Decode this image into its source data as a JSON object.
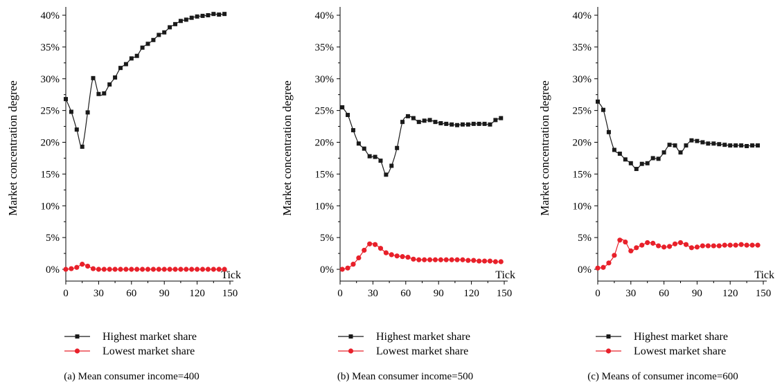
{
  "chart_data": [
    {
      "type": "line",
      "caption": "(a)  Mean consumer income=400",
      "xlabel": "Tick",
      "ylabel": "Market concentration degree",
      "xlim": [
        0,
        150
      ],
      "ylim": [
        0,
        40
      ],
      "xticks": [
        0,
        30,
        60,
        90,
        120,
        150
      ],
      "yticks": [
        0,
        5,
        10,
        15,
        20,
        25,
        30,
        35,
        40
      ],
      "ytick_labels": [
        "0%",
        "5%",
        "10%",
        "15%",
        "20%",
        "25%",
        "30%",
        "35%",
        "40%"
      ],
      "grid": false,
      "legend_position": "bottom-center",
      "series": [
        {
          "name": "Highest market share",
          "color": "#1a1a1a",
          "marker": "square",
          "x": [
            0,
            5,
            10,
            15,
            20,
            25,
            30,
            35,
            40,
            45,
            50,
            55,
            60,
            65,
            70,
            75,
            80,
            85,
            90,
            95,
            100,
            105,
            110,
            115,
            120,
            125,
            130,
            135,
            140,
            145
          ],
          "y": [
            26.8,
            24.8,
            22.0,
            19.3,
            24.7,
            30.1,
            27.6,
            27.7,
            29.1,
            30.2,
            31.7,
            32.3,
            33.2,
            33.6,
            34.9,
            35.5,
            36.1,
            36.9,
            37.3,
            38.1,
            38.6,
            39.1,
            39.3,
            39.6,
            39.8,
            39.9,
            40.0,
            40.2,
            40.1,
            40.2
          ]
        },
        {
          "name": "Lowest market share",
          "color": "#e8202a",
          "marker": "circle",
          "x": [
            0,
            5,
            10,
            15,
            20,
            25,
            30,
            35,
            40,
            45,
            50,
            55,
            60,
            65,
            70,
            75,
            80,
            85,
            90,
            95,
            100,
            105,
            110,
            115,
            120,
            125,
            130,
            135,
            140,
            145
          ],
          "y": [
            0.0,
            0.1,
            0.3,
            0.8,
            0.5,
            0.1,
            0.0,
            0.0,
            0.0,
            0.0,
            0.0,
            0.0,
            0.0,
            0.0,
            0.0,
            0.0,
            0.0,
            0.0,
            0.0,
            0.0,
            0.0,
            0.0,
            0.0,
            0.0,
            0.0,
            0.0,
            0.0,
            0.0,
            0.0,
            0.0
          ]
        }
      ]
    },
    {
      "type": "line",
      "caption": "(b)  Mean consumer income=500",
      "xlabel": "Tick",
      "ylabel": "Market concentration degree",
      "xlim": [
        0,
        150
      ],
      "ylim": [
        0,
        40
      ],
      "xticks": [
        0,
        30,
        60,
        90,
        120,
        150
      ],
      "yticks": [
        0,
        5,
        10,
        15,
        20,
        25,
        30,
        35,
        40
      ],
      "ytick_labels": [
        "0%",
        "5%",
        "10%",
        "15%",
        "20%",
        "25%",
        "30%",
        "35%",
        "40%"
      ],
      "grid": false,
      "legend_position": "bottom-center",
      "series": [
        {
          "name": "Highest market share",
          "color": "#1a1a1a",
          "marker": "square",
          "x": [
            2,
            7,
            12,
            17,
            22,
            27,
            32,
            37,
            42,
            47,
            52,
            57,
            62,
            67,
            72,
            77,
            82,
            87,
            92,
            97,
            102,
            107,
            112,
            117,
            122,
            127,
            132,
            137,
            142,
            147
          ],
          "y": [
            25.5,
            24.3,
            21.9,
            19.8,
            19.0,
            17.8,
            17.7,
            17.1,
            14.9,
            16.3,
            19.1,
            23.2,
            24.1,
            23.8,
            23.2,
            23.4,
            23.5,
            23.2,
            23.0,
            22.9,
            22.8,
            22.7,
            22.8,
            22.8,
            22.9,
            22.9,
            22.9,
            22.8,
            23.5,
            23.8
          ]
        },
        {
          "name": "Lowest market share",
          "color": "#e8202a",
          "marker": "circle",
          "x": [
            2,
            7,
            12,
            17,
            22,
            27,
            32,
            37,
            42,
            47,
            52,
            57,
            62,
            67,
            72,
            77,
            82,
            87,
            92,
            97,
            102,
            107,
            112,
            117,
            122,
            127,
            132,
            137,
            142,
            147
          ],
          "y": [
            0.0,
            0.2,
            0.8,
            1.8,
            3.0,
            4.0,
            3.9,
            3.3,
            2.6,
            2.3,
            2.1,
            2.0,
            1.9,
            1.6,
            1.5,
            1.5,
            1.5,
            1.5,
            1.5,
            1.5,
            1.5,
            1.5,
            1.5,
            1.4,
            1.4,
            1.3,
            1.3,
            1.3,
            1.2,
            1.2
          ]
        }
      ]
    },
    {
      "type": "line",
      "caption": "(c)  Means of consumer income=600",
      "xlabel": "Tick",
      "ylabel": "Market concentration degree",
      "xlim": [
        0,
        150
      ],
      "ylim": [
        0,
        40
      ],
      "xticks": [
        0,
        30,
        60,
        90,
        120,
        150
      ],
      "yticks": [
        0,
        5,
        10,
        15,
        20,
        25,
        30,
        35,
        40
      ],
      "ytick_labels": [
        "0%",
        "5%",
        "10%",
        "15%",
        "20%",
        "25%",
        "30%",
        "35%",
        "40%"
      ],
      "grid": false,
      "legend_position": "bottom-center",
      "series": [
        {
          "name": "Highest market share",
          "color": "#1a1a1a",
          "marker": "square",
          "x": [
            0,
            5,
            10,
            15,
            20,
            25,
            30,
            35,
            40,
            45,
            50,
            55,
            60,
            65,
            70,
            75,
            80,
            85,
            90,
            95,
            100,
            105,
            110,
            115,
            120,
            125,
            130,
            135,
            140,
            145
          ],
          "y": [
            26.4,
            25.1,
            21.6,
            18.8,
            18.2,
            17.3,
            16.7,
            15.8,
            16.6,
            16.7,
            17.5,
            17.4,
            18.4,
            19.6,
            19.5,
            18.4,
            19.5,
            20.3,
            20.2,
            20.0,
            19.8,
            19.8,
            19.7,
            19.6,
            19.5,
            19.5,
            19.5,
            19.4,
            19.5,
            19.5
          ]
        },
        {
          "name": "Lowest market share",
          "color": "#e8202a",
          "marker": "circle",
          "x": [
            0,
            5,
            10,
            15,
            20,
            25,
            30,
            35,
            40,
            45,
            50,
            55,
            60,
            65,
            70,
            75,
            80,
            85,
            90,
            95,
            100,
            105,
            110,
            115,
            120,
            125,
            130,
            135,
            140,
            145
          ],
          "y": [
            0.2,
            0.3,
            1.0,
            2.2,
            4.6,
            4.3,
            2.9,
            3.4,
            3.8,
            4.2,
            4.1,
            3.7,
            3.5,
            3.6,
            4.0,
            4.2,
            3.9,
            3.4,
            3.5,
            3.7,
            3.7,
            3.7,
            3.7,
            3.8,
            3.8,
            3.8,
            3.9,
            3.8,
            3.8,
            3.8
          ]
        }
      ]
    }
  ]
}
